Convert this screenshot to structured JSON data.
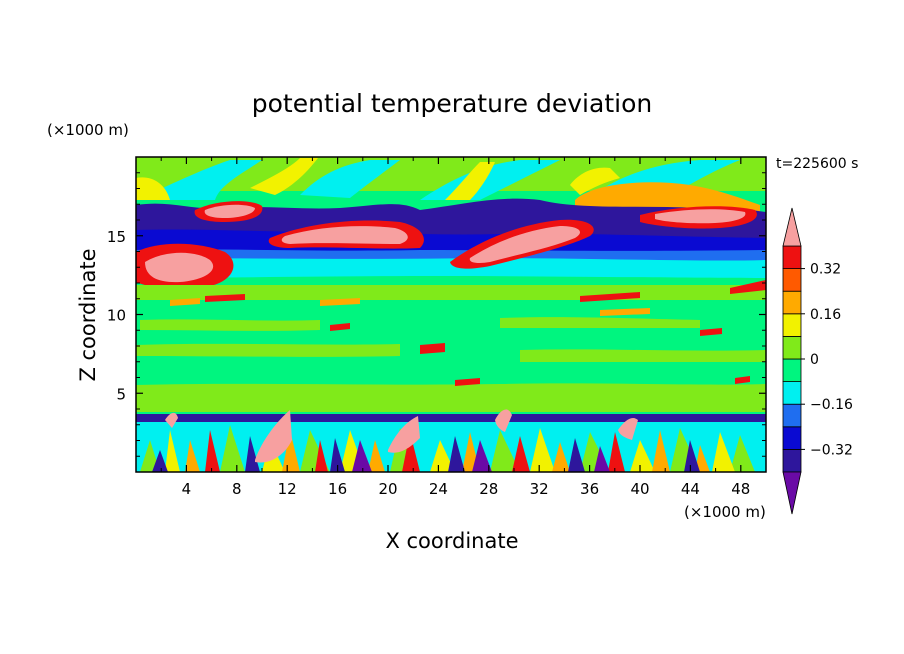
{
  "chart_data": {
    "type": "heatmap",
    "title": "potential temperature deviation",
    "xlabel": "X coordinate",
    "ylabel": "Z coordinate",
    "x_unit_label": "(×1000 m)",
    "y_unit_label": "(×1000 m)",
    "time_label": "t=225600 s",
    "xlim": [
      0,
      50
    ],
    "ylim": [
      0,
      20
    ],
    "x_ticks": [
      4,
      8,
      12,
      16,
      20,
      24,
      28,
      32,
      36,
      40,
      44,
      48
    ],
    "x_tick_labels": [
      "4",
      "8",
      "12",
      "16",
      "20",
      "24",
      "28",
      "32",
      "36",
      "40",
      "44",
      "48"
    ],
    "y_ticks": [
      5,
      10,
      15
    ],
    "y_tick_labels": [
      "5",
      "10",
      "15"
    ],
    "colorbar": {
      "levels": [
        -0.4,
        -0.32,
        -0.24,
        -0.16,
        -0.08,
        0,
        0.08,
        0.16,
        0.24,
        0.32,
        0.4
      ],
      "tick_values": [
        0.32,
        0.16,
        0,
        -0.16,
        -0.32
      ],
      "tick_labels": [
        "0.32",
        "0.16",
        "0",
        "−0.16",
        "−0.32"
      ],
      "colors": [
        "#6a0aa6",
        "#2e169c",
        "#0a0ad2",
        "#1f6ef0",
        "#00f0f0",
        "#00f57f",
        "#80ea1a",
        "#f2f200",
        "#ffaa00",
        "#ff5a00",
        "#ee1111",
        "#f7a0a0"
      ],
      "extend": "both"
    },
    "field_description_layers": [
      {
        "z_range": [
          0,
          3.5
        ],
        "description": "turbulent boundary layer mixing all colors"
      },
      {
        "z_range": [
          3.5,
          12
        ],
        "description": "mostly near-zero values (green) with small warm blobs"
      },
      {
        "z_range": [
          12,
          13.5
        ],
        "description": "cyan band (slightly negative)"
      },
      {
        "z_range": [
          13,
          18
        ],
        "description": "strong positive (pink/red) and negative (blue/purple) bands"
      },
      {
        "z_range": [
          18,
          20
        ],
        "description": "wavy green/yellow/cyan pattern"
      }
    ]
  }
}
